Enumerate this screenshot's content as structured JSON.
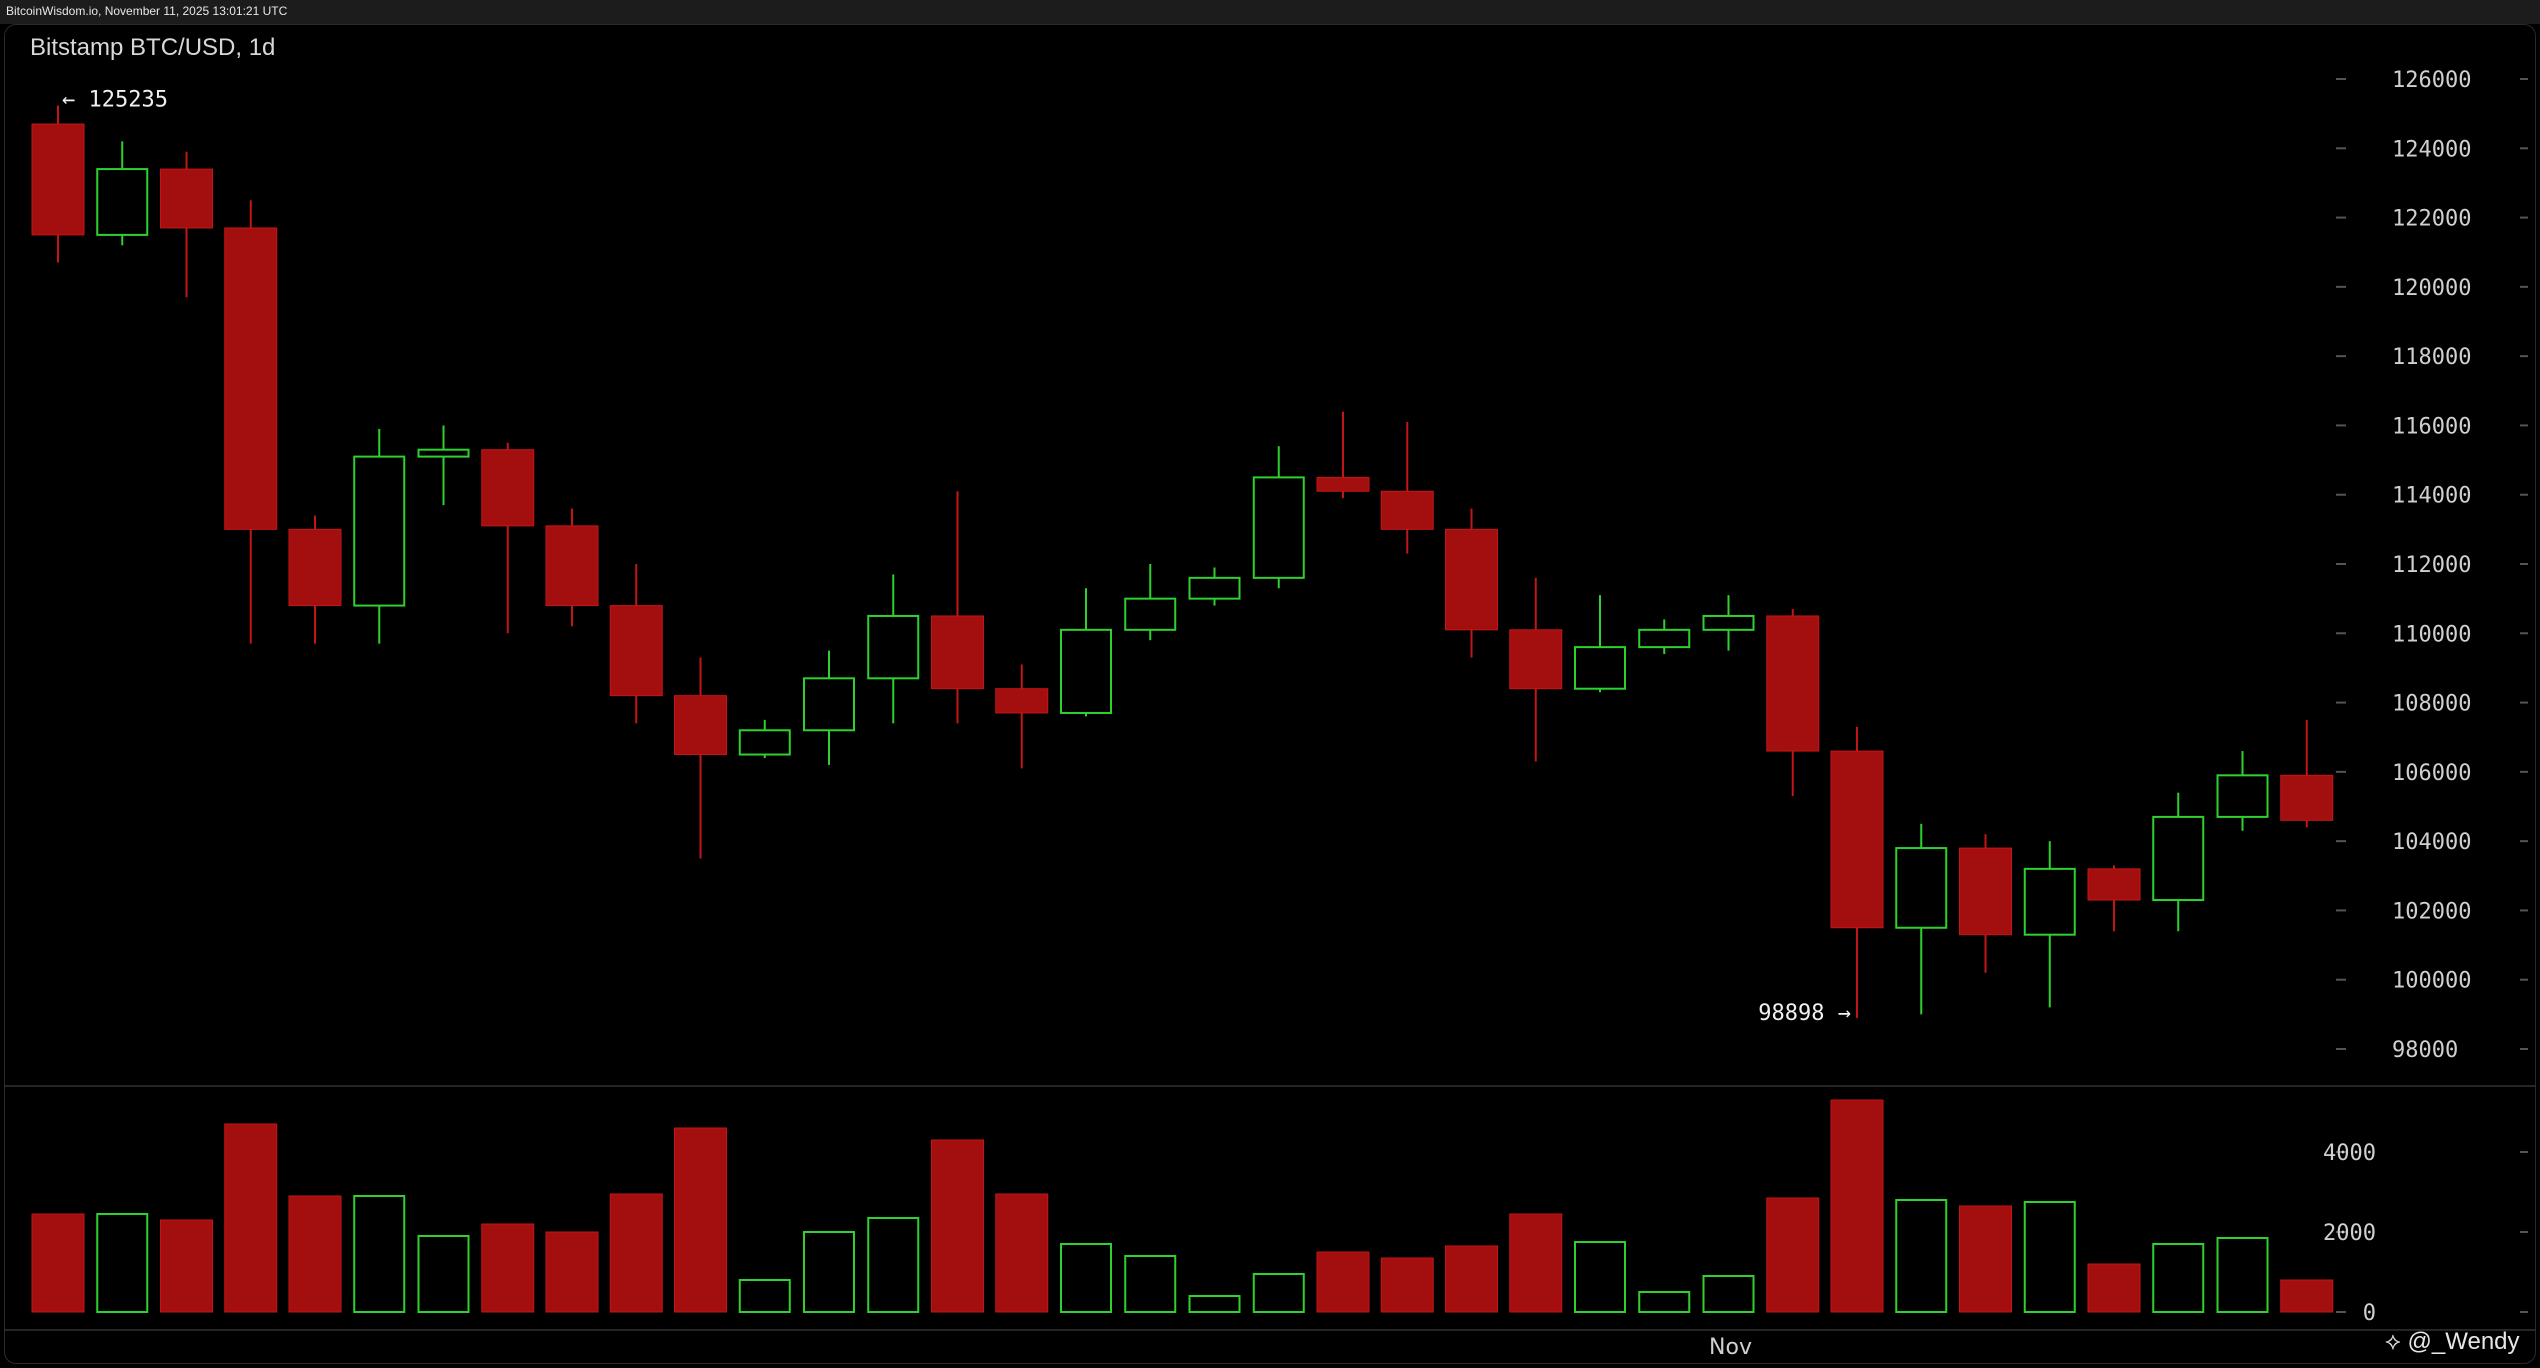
{
  "header": {
    "source_line": "BitcoinWisdom.io, November 11, 2025 13:01:21 UTC"
  },
  "watermark": "@_Wendy",
  "chart_data": {
    "type": "candlestick",
    "title": "Bitstamp BTC/USD, 1d",
    "ylim": [
      97000,
      127000
    ],
    "yticks": [
      126000,
      124000,
      122000,
      120000,
      118000,
      116000,
      114000,
      112000,
      110000,
      108000,
      106000,
      104000,
      102000,
      100000,
      98000
    ],
    "volume_ylim": [
      0,
      5300
    ],
    "volume_ticks": [
      4000,
      2000,
      0
    ],
    "x_label": "Nov",
    "x_label_index": 26,
    "annotations": [
      {
        "text": "← 125235",
        "index": 0,
        "value": 125235,
        "side": "right"
      },
      {
        "text": "98898 →",
        "index": 28,
        "value": 98898,
        "side": "left"
      }
    ],
    "colors": {
      "up": "#2fd12f",
      "down": "#a30f0f",
      "down_wick": "#c41616",
      "text": "#d0d0d0"
    },
    "candles": [
      {
        "o": 124700,
        "h": 125235,
        "l": 120700,
        "c": 121500,
        "v": 2450
      },
      {
        "o": 121500,
        "h": 124200,
        "l": 121200,
        "c": 123400,
        "v": 2450
      },
      {
        "o": 123400,
        "h": 123900,
        "l": 119700,
        "c": 121700,
        "v": 2300
      },
      {
        "o": 121700,
        "h": 122500,
        "l": 109700,
        "c": 113000,
        "v": 4700
      },
      {
        "o": 113000,
        "h": 113400,
        "l": 109700,
        "c": 110800,
        "v": 2900
      },
      {
        "o": 110800,
        "h": 115900,
        "l": 109700,
        "c": 115100,
        "v": 2900
      },
      {
        "o": 115100,
        "h": 116000,
        "l": 113700,
        "c": 115300,
        "v": 1900
      },
      {
        "o": 115300,
        "h": 115500,
        "l": 110000,
        "c": 113100,
        "v": 2200
      },
      {
        "o": 113100,
        "h": 113600,
        "l": 110200,
        "c": 110800,
        "v": 2000
      },
      {
        "o": 110800,
        "h": 112000,
        "l": 107400,
        "c": 108200,
        "v": 2950
      },
      {
        "o": 108200,
        "h": 109300,
        "l": 103500,
        "c": 106500,
        "v": 4600
      },
      {
        "o": 106500,
        "h": 107500,
        "l": 106400,
        "c": 107200,
        "v": 800
      },
      {
        "o": 107200,
        "h": 109500,
        "l": 106200,
        "c": 108700,
        "v": 2000
      },
      {
        "o": 108700,
        "h": 111700,
        "l": 107400,
        "c": 110500,
        "v": 2350
      },
      {
        "o": 110500,
        "h": 114100,
        "l": 107400,
        "c": 108400,
        "v": 4300
      },
      {
        "o": 108400,
        "h": 109100,
        "l": 106100,
        "c": 107700,
        "v": 2950
      },
      {
        "o": 107700,
        "h": 111300,
        "l": 107600,
        "c": 110100,
        "v": 1700
      },
      {
        "o": 110100,
        "h": 112000,
        "l": 109800,
        "c": 111000,
        "v": 1400
      },
      {
        "o": 111000,
        "h": 111900,
        "l": 110800,
        "c": 111600,
        "v": 400
      },
      {
        "o": 111600,
        "h": 115400,
        "l": 111300,
        "c": 114500,
        "v": 950
      },
      {
        "o": 114500,
        "h": 116400,
        "l": 113900,
        "c": 114100,
        "v": 1500
      },
      {
        "o": 114100,
        "h": 116100,
        "l": 112300,
        "c": 113000,
        "v": 1350
      },
      {
        "o": 113000,
        "h": 113600,
        "l": 109300,
        "c": 110100,
        "v": 1650
      },
      {
        "o": 110100,
        "h": 111600,
        "l": 106300,
        "c": 108400,
        "v": 2450
      },
      {
        "o": 108400,
        "h": 111100,
        "l": 108300,
        "c": 109600,
        "v": 1750
      },
      {
        "o": 109600,
        "h": 110400,
        "l": 109400,
        "c": 110100,
        "v": 500
      },
      {
        "o": 110100,
        "h": 111100,
        "l": 109500,
        "c": 110500,
        "v": 900
      },
      {
        "o": 110500,
        "h": 110700,
        "l": 105300,
        "c": 106600,
        "v": 2850
      },
      {
        "o": 106600,
        "h": 107300,
        "l": 98898,
        "c": 101500,
        "v": 5300
      },
      {
        "o": 101500,
        "h": 104500,
        "l": 99000,
        "c": 103800,
        "v": 2800
      },
      {
        "o": 103800,
        "h": 104200,
        "l": 100200,
        "c": 101300,
        "v": 2650
      },
      {
        "o": 101300,
        "h": 104000,
        "l": 99200,
        "c": 103200,
        "v": 2750
      },
      {
        "o": 103200,
        "h": 103300,
        "l": 101400,
        "c": 102300,
        "v": 1200
      },
      {
        "o": 102300,
        "h": 105400,
        "l": 101400,
        "c": 104700,
        "v": 1700
      },
      {
        "o": 104700,
        "h": 106600,
        "l": 104300,
        "c": 105900,
        "v": 1850
      },
      {
        "o": 105900,
        "h": 107500,
        "l": 104400,
        "c": 104600,
        "v": 800
      }
    ]
  }
}
